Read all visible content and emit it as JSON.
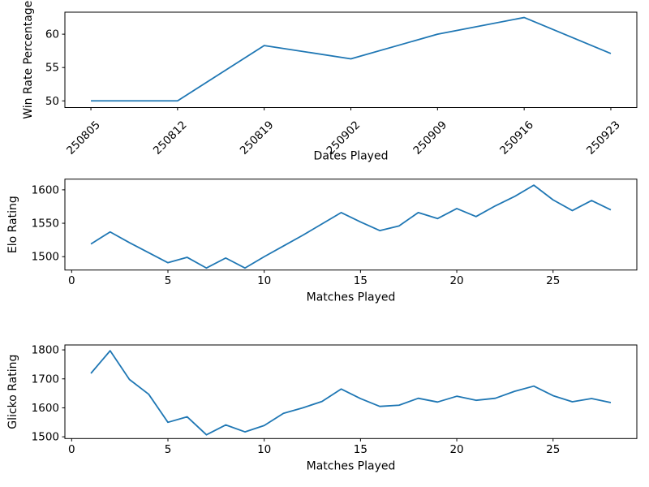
{
  "figure": {
    "background": "#ffffff",
    "line_color": "#1f77b4"
  },
  "chart_data": [
    {
      "type": "line",
      "id": "win-rate",
      "title": "",
      "xlabel": "Dates Played",
      "ylabel": "Win Rate Percentage",
      "categories": [
        "250805",
        "250812",
        "250819",
        "250902",
        "250909",
        "250916",
        "250923"
      ],
      "values": [
        50.0,
        50.0,
        58.3,
        56.3,
        60.0,
        62.5,
        57.1
      ],
      "yticks": [
        50,
        55,
        60
      ],
      "xtick_rotation": 45,
      "xlim": [
        -0.3,
        6.3
      ],
      "ylim": [
        49.0,
        63.3
      ],
      "grid": false,
      "legend": "none"
    },
    {
      "type": "line",
      "id": "elo",
      "title": "",
      "xlabel": "Matches Played",
      "ylabel": "Elo Rating",
      "x": [
        1,
        2,
        3,
        4,
        5,
        6,
        7,
        8,
        9,
        10,
        11,
        12,
        13,
        14,
        15,
        16,
        17,
        18,
        19,
        20,
        21,
        22,
        23,
        24,
        25,
        26,
        27,
        28
      ],
      "values": [
        1519,
        1537,
        1521,
        1506,
        1491,
        1499,
        1483,
        1498,
        1483,
        1500,
        1516,
        1532,
        1549,
        1566,
        1552,
        1539,
        1546,
        1566,
        1557,
        1572,
        1560,
        1576,
        1590,
        1607,
        1585,
        1569,
        1584,
        1570
      ],
      "xticks": [
        0,
        5,
        10,
        15,
        20,
        25
      ],
      "yticks": [
        1500,
        1550,
        1600
      ],
      "xtick_rotation": 0,
      "xlim": [
        -0.35,
        29.35
      ],
      "ylim": [
        1480,
        1616
      ],
      "grid": false,
      "legend": "none"
    },
    {
      "type": "line",
      "id": "glicko",
      "title": "",
      "xlabel": "Matches Played",
      "ylabel": "Glicko Rating",
      "x": [
        1,
        2,
        3,
        4,
        5,
        6,
        7,
        8,
        9,
        10,
        11,
        12,
        13,
        14,
        15,
        16,
        17,
        18,
        19,
        20,
        21,
        22,
        23,
        24,
        25,
        26,
        27,
        28
      ],
      "values": [
        1719,
        1797,
        1698,
        1647,
        1550,
        1569,
        1507,
        1541,
        1517,
        1539,
        1581,
        1600,
        1622,
        1665,
        1632,
        1605,
        1609,
        1633,
        1620,
        1640,
        1626,
        1633,
        1657,
        1675,
        1642,
        1621,
        1632,
        1618
      ],
      "xticks": [
        0,
        5,
        10,
        15,
        20,
        25
      ],
      "yticks": [
        1500,
        1600,
        1700,
        1800
      ],
      "xtick_rotation": 0,
      "xlim": [
        -0.35,
        29.35
      ],
      "ylim": [
        1494,
        1817
      ],
      "grid": false,
      "legend": "none"
    }
  ]
}
